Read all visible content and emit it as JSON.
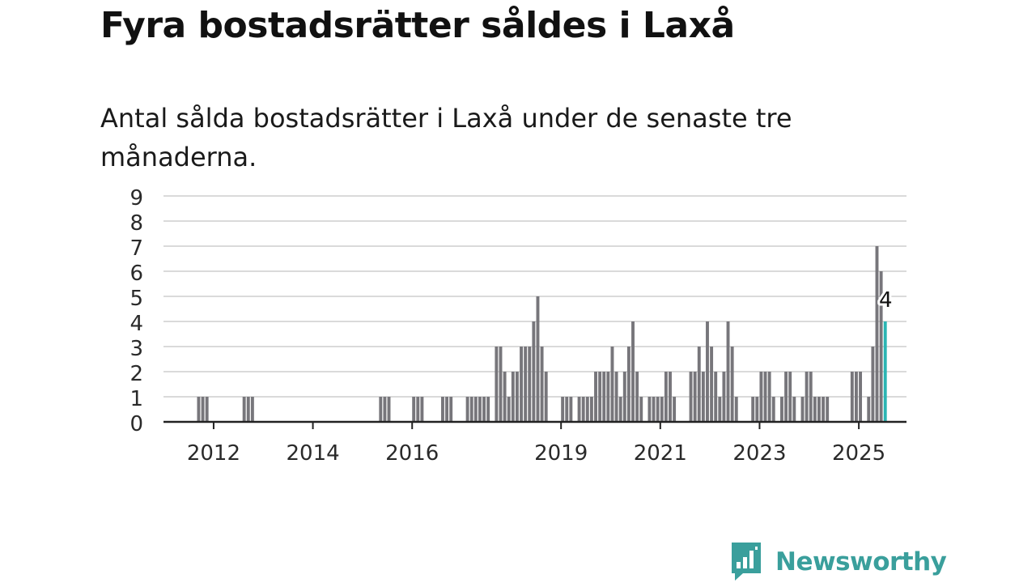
{
  "title": "Fyra bostadsrätter såldes i Laxå",
  "subtitle": "Antal sålda bostadsrätter i Laxå under de senaste tre månaderna.",
  "brand": {
    "name": "Newsworthy",
    "color": "#3a9f9c"
  },
  "colors": {
    "bar": "#77767b",
    "highlight": "#2bb5b3",
    "axis": "#222222",
    "grid": "#dadada"
  },
  "chart_data": {
    "type": "bar",
    "x_axis": "monthly, from 2011-09 to 2025-07",
    "xticks": [
      2012,
      2014,
      2016,
      2019,
      2021,
      2023,
      2025
    ],
    "yticks": [
      0,
      1,
      2,
      3,
      4,
      5,
      6,
      7,
      8,
      9
    ],
    "ylim": [
      0,
      9
    ],
    "grid": true,
    "highlight": {
      "x": "2025-07",
      "value": 4,
      "label": "4"
    },
    "values": [
      {
        "x": "2011-09",
        "v": 1
      },
      {
        "x": "2011-10",
        "v": 1
      },
      {
        "x": "2011-11",
        "v": 1
      },
      {
        "x": "2012-08",
        "v": 1
      },
      {
        "x": "2012-09",
        "v": 1
      },
      {
        "x": "2012-10",
        "v": 1
      },
      {
        "x": "2015-05",
        "v": 1
      },
      {
        "x": "2015-06",
        "v": 1
      },
      {
        "x": "2015-07",
        "v": 1
      },
      {
        "x": "2016-01",
        "v": 1
      },
      {
        "x": "2016-02",
        "v": 1
      },
      {
        "x": "2016-03",
        "v": 1
      },
      {
        "x": "2016-08",
        "v": 1
      },
      {
        "x": "2016-09",
        "v": 1
      },
      {
        "x": "2016-10",
        "v": 1
      },
      {
        "x": "2017-02",
        "v": 1
      },
      {
        "x": "2017-03",
        "v": 1
      },
      {
        "x": "2017-04",
        "v": 1
      },
      {
        "x": "2017-05",
        "v": 1
      },
      {
        "x": "2017-06",
        "v": 1
      },
      {
        "x": "2017-07",
        "v": 1
      },
      {
        "x": "2017-09",
        "v": 3
      },
      {
        "x": "2017-10",
        "v": 3
      },
      {
        "x": "2017-11",
        "v": 2
      },
      {
        "x": "2017-12",
        "v": 1
      },
      {
        "x": "2018-01",
        "v": 2
      },
      {
        "x": "2018-02",
        "v": 2
      },
      {
        "x": "2018-03",
        "v": 3
      },
      {
        "x": "2018-04",
        "v": 3
      },
      {
        "x": "2018-05",
        "v": 3
      },
      {
        "x": "2018-06",
        "v": 4
      },
      {
        "x": "2018-07",
        "v": 5
      },
      {
        "x": "2018-08",
        "v": 3
      },
      {
        "x": "2018-09",
        "v": 2
      },
      {
        "x": "2019-01",
        "v": 1
      },
      {
        "x": "2019-02",
        "v": 1
      },
      {
        "x": "2019-03",
        "v": 1
      },
      {
        "x": "2019-05",
        "v": 1
      },
      {
        "x": "2019-06",
        "v": 1
      },
      {
        "x": "2019-07",
        "v": 1
      },
      {
        "x": "2019-08",
        "v": 1
      },
      {
        "x": "2019-09",
        "v": 2
      },
      {
        "x": "2019-10",
        "v": 2
      },
      {
        "x": "2019-11",
        "v": 2
      },
      {
        "x": "2019-12",
        "v": 2
      },
      {
        "x": "2020-01",
        "v": 3
      },
      {
        "x": "2020-02",
        "v": 2
      },
      {
        "x": "2020-03",
        "v": 1
      },
      {
        "x": "2020-04",
        "v": 2
      },
      {
        "x": "2020-05",
        "v": 3
      },
      {
        "x": "2020-06",
        "v": 4
      },
      {
        "x": "2020-07",
        "v": 2
      },
      {
        "x": "2020-08",
        "v": 1
      },
      {
        "x": "2020-10",
        "v": 1
      },
      {
        "x": "2020-11",
        "v": 1
      },
      {
        "x": "2020-12",
        "v": 1
      },
      {
        "x": "2021-01",
        "v": 1
      },
      {
        "x": "2021-02",
        "v": 2
      },
      {
        "x": "2021-03",
        "v": 2
      },
      {
        "x": "2021-04",
        "v": 1
      },
      {
        "x": "2021-08",
        "v": 2
      },
      {
        "x": "2021-09",
        "v": 2
      },
      {
        "x": "2021-10",
        "v": 3
      },
      {
        "x": "2021-11",
        "v": 2
      },
      {
        "x": "2021-12",
        "v": 4
      },
      {
        "x": "2022-01",
        "v": 3
      },
      {
        "x": "2022-02",
        "v": 2
      },
      {
        "x": "2022-03",
        "v": 1
      },
      {
        "x": "2022-04",
        "v": 2
      },
      {
        "x": "2022-05",
        "v": 4
      },
      {
        "x": "2022-06",
        "v": 3
      },
      {
        "x": "2022-07",
        "v": 1
      },
      {
        "x": "2022-11",
        "v": 1
      },
      {
        "x": "2022-12",
        "v": 1
      },
      {
        "x": "2023-01",
        "v": 2
      },
      {
        "x": "2023-02",
        "v": 2
      },
      {
        "x": "2023-03",
        "v": 2
      },
      {
        "x": "2023-04",
        "v": 1
      },
      {
        "x": "2023-06",
        "v": 1
      },
      {
        "x": "2023-07",
        "v": 2
      },
      {
        "x": "2023-08",
        "v": 2
      },
      {
        "x": "2023-09",
        "v": 1
      },
      {
        "x": "2023-11",
        "v": 1
      },
      {
        "x": "2023-12",
        "v": 2
      },
      {
        "x": "2024-01",
        "v": 2
      },
      {
        "x": "2024-02",
        "v": 1
      },
      {
        "x": "2024-03",
        "v": 1
      },
      {
        "x": "2024-04",
        "v": 1
      },
      {
        "x": "2024-05",
        "v": 1
      },
      {
        "x": "2024-11",
        "v": 2
      },
      {
        "x": "2024-12",
        "v": 2
      },
      {
        "x": "2025-01",
        "v": 2
      },
      {
        "x": "2025-03",
        "v": 1
      },
      {
        "x": "2025-04",
        "v": 3
      },
      {
        "x": "2025-05",
        "v": 7
      },
      {
        "x": "2025-06",
        "v": 6
      },
      {
        "x": "2025-07",
        "v": 4
      }
    ]
  }
}
